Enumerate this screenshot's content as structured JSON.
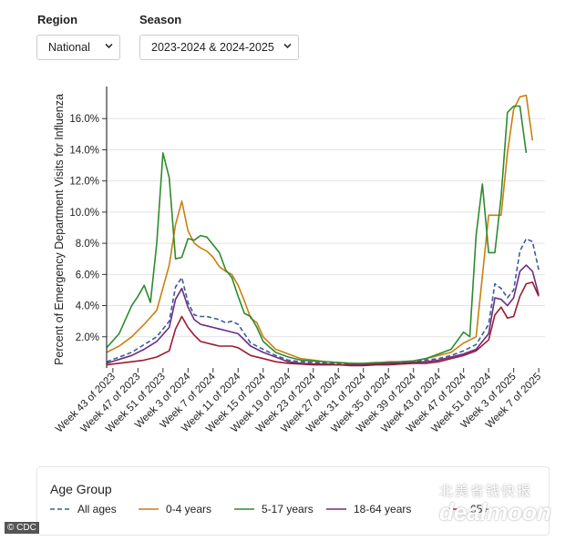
{
  "controls": {
    "region_label": "Region",
    "region_value": "National",
    "season_label": "Season",
    "season_value": "2023-2024 & 2024-2025",
    "chevron_icon": "chevron-down-icon"
  },
  "legend": {
    "title": "Age Group"
  },
  "credit": "© CDC",
  "watermark": {
    "cn": "北美省钱快报",
    "en": "dealmoon"
  },
  "chart_data": {
    "type": "line",
    "title": "",
    "xlabel": "",
    "ylabel": "Percent of Emergency Department Visits for Influenza",
    "ylim": [
      0,
      18
    ],
    "y_ticks": [
      "2.0%",
      "4.0%",
      "6.0%",
      "8.0%",
      "10.0%",
      "12.0%",
      "14.0%",
      "16.0%"
    ],
    "y_tick_values": [
      2,
      4,
      6,
      8,
      10,
      12,
      14,
      16
    ],
    "grid": "horizontal",
    "legend_position": "bottom",
    "x_tick_labels": [
      "Week 43 of 2023",
      "Week 47 of 2023",
      "Week 51 of 2023",
      "Week 3 of 2024",
      "Week 7 of 2024",
      "Week 11 of 2024",
      "Week 15 of 2024",
      "Week 19 of 2024",
      "Week 23 of 2024",
      "Week 27 of 2024",
      "Week 31 of 2024",
      "Week 35 of 2024",
      "Week 39 of 2024",
      "Week 43 of 2024",
      "Week 47 of 2024",
      "Week 51 of 2024",
      "Week 3 of 2025",
      "Week 7 of 2025"
    ],
    "x_tick_weeks": [
      1,
      5,
      9,
      13,
      17,
      21,
      25,
      29,
      33,
      37,
      41,
      45,
      49,
      53,
      57,
      61,
      65,
      69
    ],
    "x_note": "x values are week numbers counted from Week 42 of 2023 (week 1 = Week 43 of 2023)",
    "series": [
      {
        "name": "All ages",
        "color": "#3b5b9a",
        "dash": "5,3",
        "x": [
          0,
          4,
          6,
          8,
          10,
          11,
          12,
          13,
          14,
          15,
          16,
          17,
          18,
          19,
          20,
          21,
          23,
          25,
          27,
          29,
          31,
          33,
          35,
          37,
          39,
          41,
          43,
          45,
          47,
          49,
          51,
          53,
          55,
          57,
          59,
          61,
          62,
          63,
          64,
          65,
          66,
          67,
          68,
          69,
          70
        ],
        "values": [
          0.4,
          1.0,
          1.5,
          2.0,
          3.0,
          5.2,
          5.8,
          4.2,
          3.4,
          3.3,
          3.3,
          3.2,
          3.1,
          2.9,
          3.0,
          2.8,
          1.6,
          1.2,
          0.8,
          0.5,
          0.4,
          0.35,
          0.3,
          0.3,
          0.25,
          0.25,
          0.3,
          0.35,
          0.35,
          0.4,
          0.5,
          0.6,
          0.8,
          1.1,
          1.5,
          2.8,
          5.4,
          5.1,
          4.5,
          5.0,
          7.5,
          8.3,
          8.1,
          6.3,
          null
        ]
      },
      {
        "name": "0-4 years",
        "color": "#c9800e",
        "dash": "",
        "x": [
          0,
          2,
          4,
          6,
          8,
          10,
          11,
          12,
          13,
          14,
          15,
          16,
          17,
          18,
          19,
          20,
          21,
          22,
          23,
          24,
          25,
          27,
          29,
          31,
          33,
          35,
          37,
          39,
          41,
          43,
          45,
          47,
          49,
          51,
          53,
          55,
          57,
          59,
          61,
          62,
          63,
          64,
          65,
          66,
          67,
          68,
          69,
          70
        ],
        "values": [
          1.0,
          1.4,
          2.0,
          2.8,
          3.7,
          6.6,
          9.2,
          10.7,
          8.8,
          8.0,
          7.7,
          7.5,
          7.1,
          6.5,
          6.2,
          6.0,
          5.3,
          4.3,
          3.2,
          2.9,
          2.0,
          1.2,
          0.9,
          0.6,
          0.5,
          0.4,
          0.35,
          0.3,
          0.25,
          0.3,
          0.4,
          0.4,
          0.45,
          0.6,
          0.8,
          1.0,
          1.6,
          2.0,
          9.8,
          9.8,
          9.8,
          13.8,
          16.6,
          17.4,
          17.5,
          14.6,
          null,
          null
        ]
      },
      {
        "name": "5-17 years",
        "color": "#2e8b2e",
        "dash": "",
        "x": [
          0,
          2,
          4,
          5,
          6,
          7,
          8,
          9,
          10,
          11,
          12,
          13,
          14,
          15,
          16,
          17,
          18,
          19,
          20,
          21,
          22,
          23,
          24,
          25,
          27,
          29,
          31,
          33,
          35,
          37,
          39,
          41,
          43,
          45,
          47,
          49,
          51,
          53,
          55,
          57,
          58,
          59,
          60,
          61,
          62,
          63,
          64,
          65,
          66,
          67,
          68,
          69,
          70
        ],
        "values": [
          1.3,
          2.2,
          4.0,
          4.6,
          5.3,
          4.2,
          8.0,
          13.8,
          12.2,
          7.0,
          7.1,
          8.3,
          8.2,
          8.5,
          8.4,
          7.9,
          7.4,
          6.3,
          5.8,
          4.6,
          3.5,
          3.3,
          2.6,
          1.7,
          1.0,
          0.7,
          0.5,
          0.45,
          0.4,
          0.35,
          0.3,
          0.3,
          0.35,
          0.35,
          0.4,
          0.45,
          0.6,
          0.9,
          1.2,
          2.3,
          2.0,
          8.5,
          11.8,
          7.4,
          7.4,
          11.0,
          16.4,
          16.8,
          16.8,
          13.8,
          null,
          null,
          null
        ]
      },
      {
        "name": "18-64 years",
        "color": "#6a2c86",
        "dash": "",
        "x": [
          0,
          4,
          6,
          8,
          10,
          11,
          12,
          13,
          14,
          15,
          16,
          17,
          18,
          19,
          20,
          21,
          23,
          25,
          27,
          29,
          31,
          33,
          35,
          37,
          39,
          41,
          43,
          45,
          47,
          49,
          51,
          53,
          55,
          57,
          59,
          61,
          62,
          63,
          64,
          65,
          66,
          67,
          68,
          69,
          70
        ],
        "values": [
          0.3,
          0.8,
          1.2,
          1.7,
          2.6,
          4.4,
          5.1,
          3.9,
          3.1,
          2.8,
          2.7,
          2.6,
          2.5,
          2.4,
          2.3,
          2.2,
          1.4,
          1.0,
          0.7,
          0.4,
          0.3,
          0.25,
          0.25,
          0.2,
          0.2,
          0.2,
          0.25,
          0.3,
          0.3,
          0.35,
          0.4,
          0.5,
          0.7,
          0.9,
          1.2,
          2.2,
          4.5,
          4.4,
          4.0,
          4.5,
          6.2,
          6.6,
          6.2,
          4.7,
          null
        ]
      },
      {
        "name": "65+",
        "color": "#9b1b2e",
        "dash": "",
        "x": [
          0,
          4,
          6,
          8,
          10,
          11,
          12,
          13,
          14,
          15,
          16,
          17,
          18,
          19,
          20,
          21,
          23,
          25,
          27,
          29,
          31,
          33,
          35,
          37,
          39,
          41,
          43,
          45,
          47,
          49,
          51,
          53,
          55,
          57,
          59,
          61,
          62,
          63,
          64,
          65,
          66,
          67,
          68,
          69,
          70
        ],
        "values": [
          0.2,
          0.4,
          0.5,
          0.7,
          1.1,
          2.5,
          3.3,
          2.6,
          2.1,
          1.7,
          1.6,
          1.5,
          1.4,
          1.4,
          1.4,
          1.3,
          0.8,
          0.6,
          0.4,
          0.3,
          0.25,
          0.2,
          0.2,
          0.2,
          0.15,
          0.15,
          0.2,
          0.2,
          0.25,
          0.3,
          0.3,
          0.4,
          0.6,
          0.8,
          1.1,
          1.8,
          3.4,
          3.9,
          3.2,
          3.3,
          4.6,
          5.4,
          5.5,
          4.6,
          null
        ]
      }
    ]
  }
}
